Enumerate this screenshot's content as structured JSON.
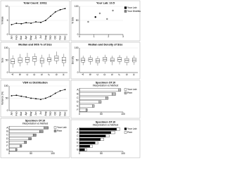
{
  "chart_data": [
    {
      "type": "line",
      "title": "Total Count: 10011",
      "ylabel": "% Male",
      "color": "#000",
      "categories": [
        "Jan",
        "Feb",
        "Mar",
        "Apr",
        "May",
        "Jun",
        "Jul",
        "Aug",
        "Sep",
        "Oct",
        "Nov",
        "Dec"
      ],
      "values": [
        3.5,
        4,
        3.8,
        4.2,
        4,
        4.5,
        4.3,
        5,
        6.5,
        8,
        8.8,
        9.2
      ],
      "ylim": [
        0,
        10
      ],
      "yticks": [
        0,
        5,
        10
      ],
      "grid": true
    },
    {
      "type": "scatter",
      "title": "Your Lab: 10.5",
      "ylabel": "% Site",
      "xlim": [
        0,
        3
      ],
      "ylim": [
        0,
        100
      ],
      "xticks": [
        0,
        1,
        2,
        3
      ],
      "yticks": [
        0,
        50,
        100
      ],
      "grid": true,
      "series": [
        {
          "name": "Your Lab",
          "color": "#000",
          "x": [
            1.1
          ],
          "y": [
            62
          ]
        },
        {
          "name": "Your Distribution",
          "color": "#888",
          "x": [
            0.6,
            1.4,
            1.9,
            2.3
          ],
          "y": [
            45,
            75,
            55,
            85
          ]
        }
      ]
    },
    {
      "type": "box",
      "title": "Median and 90th % of Size",
      "ylabel": "Size",
      "ylim": [
        0,
        100
      ],
      "yticks": [
        0,
        50,
        100
      ],
      "grid": true,
      "categories": [
        "A",
        "B",
        "C",
        "D",
        "E",
        "F",
        "G",
        "H"
      ],
      "boxes": [
        {
          "min": 20,
          "q1": 35,
          "median": 45,
          "q3": 55,
          "max": 70
        },
        {
          "min": 25,
          "q1": 40,
          "median": 50,
          "q3": 60,
          "max": 75
        },
        {
          "min": 30,
          "q1": 42,
          "median": 52,
          "q3": 62,
          "max": 80
        },
        {
          "min": 28,
          "q1": 45,
          "median": 55,
          "q3": 65,
          "max": 78
        },
        {
          "min": 22,
          "q1": 38,
          "median": 48,
          "q3": 58,
          "max": 72
        },
        {
          "min": 30,
          "q1": 45,
          "median": 52,
          "q3": 60,
          "max": 75
        },
        {
          "min": 35,
          "q1": 48,
          "median": 58,
          "q3": 68,
          "max": 85
        },
        {
          "min": 25,
          "q1": 40,
          "median": 50,
          "q3": 62,
          "max": 76
        }
      ]
    },
    {
      "type": "box",
      "title": "Median and Density of Size",
      "ylabel": "Density",
      "ylim": [
        0,
        100
      ],
      "yticks": [
        0,
        50,
        100
      ],
      "grid": true,
      "categories": [
        "A",
        "B",
        "C",
        "D",
        "E",
        "F",
        "G",
        "H"
      ],
      "boxes": [
        {
          "min": 30,
          "q1": 42,
          "median": 50,
          "q3": 58,
          "max": 68
        },
        {
          "min": 32,
          "q1": 45,
          "median": 52,
          "q3": 60,
          "max": 70
        },
        {
          "min": 28,
          "q1": 40,
          "median": 48,
          "q3": 56,
          "max": 66
        },
        {
          "min": 35,
          "q1": 46,
          "median": 54,
          "q3": 62,
          "max": 72
        },
        {
          "min": 30,
          "q1": 44,
          "median": 50,
          "q3": 58,
          "max": 68
        },
        {
          "min": 33,
          "q1": 45,
          "median": 53,
          "q3": 61,
          "max": 71
        },
        {
          "min": 29,
          "q1": 41,
          "median": 49,
          "q3": 57,
          "max": 67
        },
        {
          "min": 31,
          "q1": 43,
          "median": 51,
          "q3": 59,
          "max": 69
        }
      ]
    },
    {
      "type": "line",
      "title": "VSR vs Distribution",
      "ylabel": "Variance (%)",
      "color": "#000",
      "categories": [
        "Jan",
        "Feb",
        "Mar",
        "Apr",
        "May",
        "Jun",
        "Jul",
        "Aug",
        "Sep",
        "Oct",
        "Nov",
        "Dec"
      ],
      "values": [
        60,
        62,
        58,
        55,
        50,
        48,
        45,
        50,
        58,
        70,
        80,
        85
      ],
      "ylim": [
        0,
        100
      ],
      "yticks": [
        0,
        50,
        100
      ],
      "grid": true
    },
    {
      "type": "barh",
      "title": "Specimen Of 10",
      "subtitle": "Interpretation vs Method",
      "xlim": [
        0,
        100
      ],
      "xticks": [
        0,
        50,
        100
      ],
      "categories": [
        "A",
        "B",
        "C",
        "D",
        "E",
        "F"
      ],
      "series": [
        {
          "name": "Your Lab",
          "color": "#fff",
          "values": [
            90,
            75,
            60,
            45,
            30,
            15
          ]
        },
        {
          "name": "Peer",
          "color": "#bbb",
          "values": [
            5,
            8,
            6,
            5,
            4,
            3
          ]
        }
      ]
    },
    {
      "type": "barh",
      "title": "Specimen Of 10",
      "subtitle": "Interpretation vs Method",
      "xlim": [
        0,
        100
      ],
      "xticks": [
        0,
        50,
        100
      ],
      "categories": [
        "A",
        "B",
        "C",
        "D",
        "E",
        "F",
        "G"
      ],
      "series": [
        {
          "name": "Your Lab",
          "color": "#fff",
          "values": [
            80,
            70,
            55,
            45,
            35,
            25,
            15
          ]
        },
        {
          "name": "Peer",
          "color": "#999",
          "values": [
            10,
            8,
            7,
            6,
            5,
            4,
            3
          ]
        }
      ]
    },
    {
      "type": "barh",
      "title": "Specimen Of 10",
      "subtitle": "Interpretation vs Method",
      "xlim": [
        0,
        100
      ],
      "xticks": [
        0,
        50,
        100
      ],
      "categories": [
        "A",
        "B",
        "C",
        "D",
        "E",
        "F",
        "G"
      ],
      "series": [
        {
          "name": "Your Lab",
          "color": "#000",
          "values": [
            85,
            72,
            60,
            48,
            36,
            24,
            12
          ]
        },
        {
          "name": "Peer",
          "color": "#fff",
          "values": [
            8,
            10,
            9,
            8,
            7,
            6,
            5
          ]
        }
      ]
    }
  ]
}
